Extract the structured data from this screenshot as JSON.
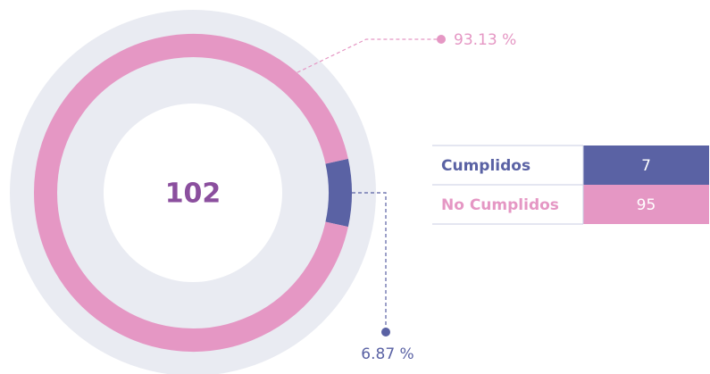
{
  "chart_data": {
    "type": "donut",
    "center_label": "102",
    "categories": [
      "Cumplidos",
      "No Cumplidos"
    ],
    "values": [
      6.87,
      93.13
    ],
    "value_labels": [
      "6.87 %",
      "93.13 %"
    ],
    "colors": [
      "#5a62a4",
      "#e597c4"
    ],
    "table": {
      "rows": [
        [
          "Cumplidos",
          "7"
        ],
        [
          "No Cumplidos",
          "95"
        ]
      ]
    }
  }
}
